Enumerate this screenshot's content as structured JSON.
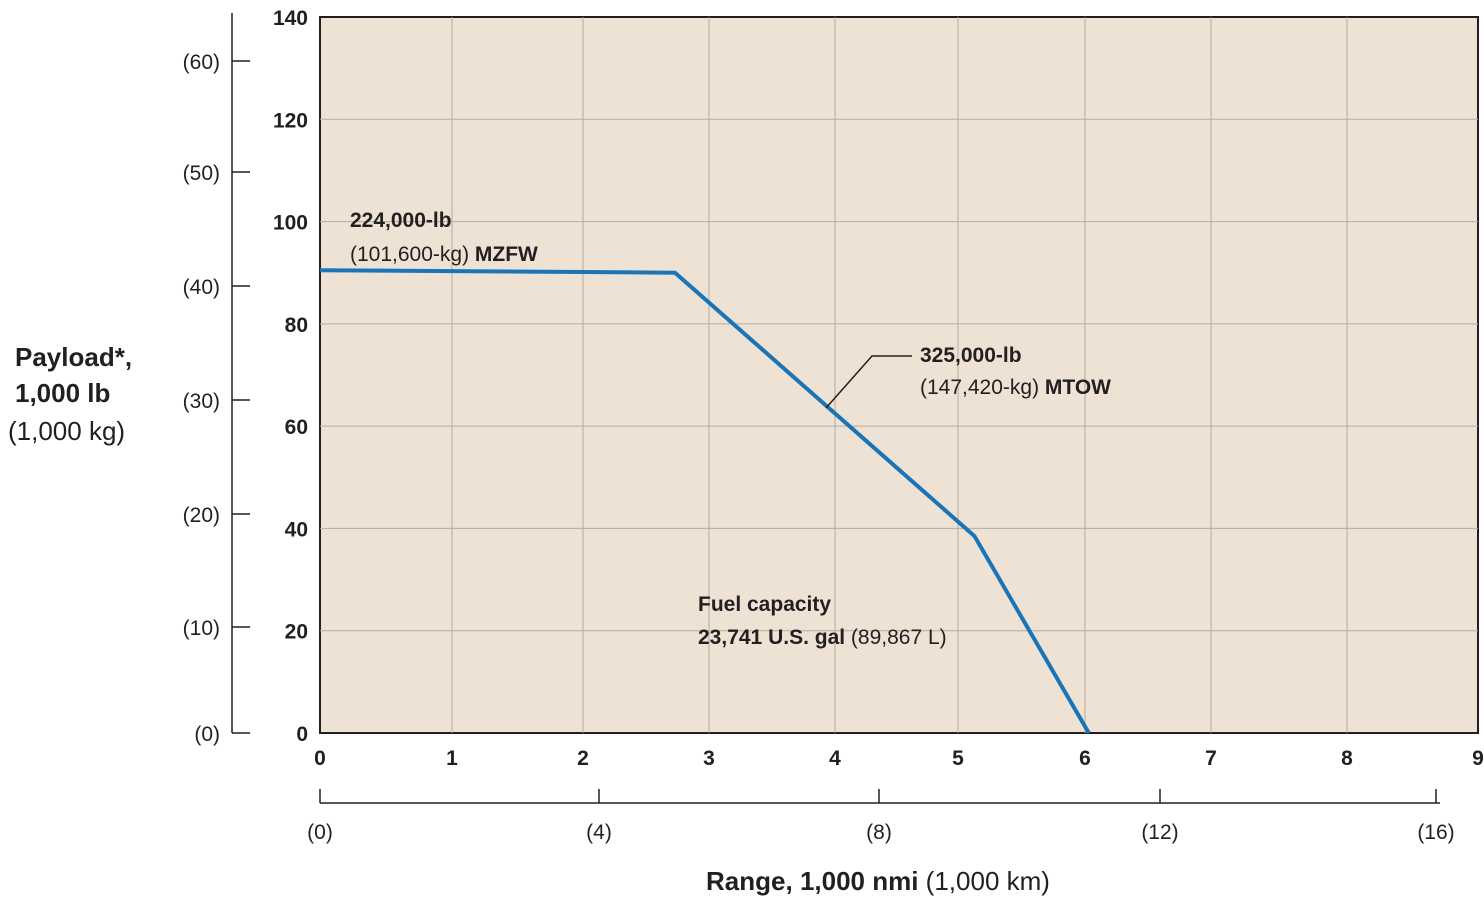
{
  "chart_data": {
    "type": "line",
    "title": "",
    "colors": {
      "plot_background": "#ede2d3",
      "grid": "#b3aca4",
      "line": "#1a75b8",
      "text": "#231f20"
    },
    "ylabel": {
      "line1": "Payload*,",
      "line2": "1,000 lb",
      "line3": "(1,000 kg)"
    },
    "xlabel": {
      "bold": "Range, 1,000 nmi",
      "normal": " (1,000 km)"
    },
    "xlim": [
      0,
      9
    ],
    "ylim": [
      0,
      140
    ],
    "x_ticks": [
      "0",
      "1",
      "2",
      "3",
      "4",
      "5",
      "6",
      "7",
      "8",
      "9"
    ],
    "y_ticks": [
      "0",
      "20",
      "40",
      "60",
      "80",
      "100",
      "120",
      "140"
    ],
    "secondary_x_ticks": [
      "(0)",
      "(4)",
      "(8)",
      "(12)",
      "(16)"
    ],
    "secondary_y_ticks": [
      "(0)",
      "(10)",
      "(20)",
      "(30)",
      "(40)",
      "(50)",
      "(60)"
    ],
    "series": [
      {
        "points": [
          [
            0,
            90.5
          ],
          [
            2.73,
            90
          ],
          [
            5.13,
            38.5
          ],
          [
            6.03,
            0
          ]
        ]
      }
    ],
    "annotations": {
      "mzfw": {
        "line1": "224,000-lb",
        "line2_normal": "(101,600-kg) ",
        "line2_bold": "MZFW"
      },
      "mtow": {
        "line1": "325,000-lb",
        "line2_normal": "(147,420-kg) ",
        "line2_bold": "MTOW"
      },
      "fuel": {
        "line1": "Fuel capacity",
        "line2_bold": "23,741 U.S. gal",
        "line2_normal": " (89,867 L)"
      }
    }
  }
}
